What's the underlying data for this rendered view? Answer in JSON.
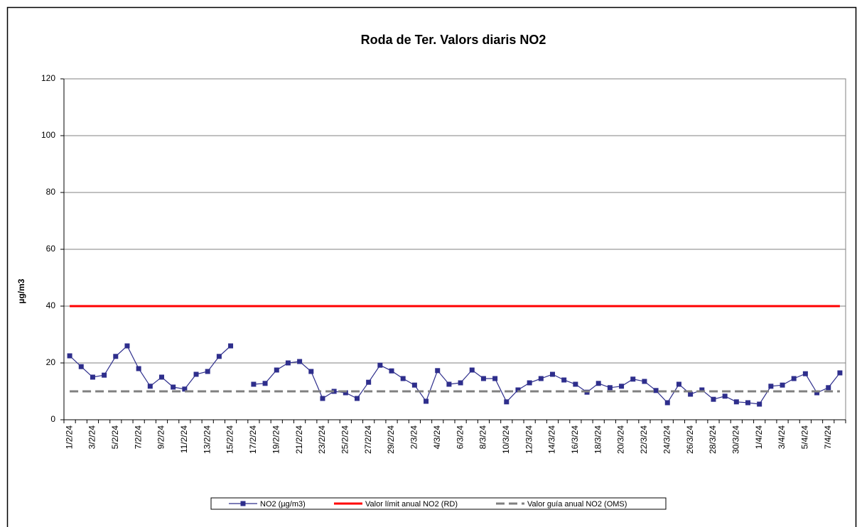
{
  "chart_data": {
    "type": "line",
    "title": "Roda de Ter. Valors diaris NO2",
    "y_label": "µg/m3",
    "categories": [
      "1/2/24",
      null,
      "3/2/24",
      null,
      "5/2/24",
      null,
      "7/2/24",
      null,
      "9/2/24",
      null,
      "11/2/24",
      null,
      "13/2/24",
      null,
      "15/2/24",
      null,
      "17/2/24",
      null,
      "19/2/24",
      null,
      "21/2/24",
      null,
      "23/2/24",
      null,
      "25/2/24",
      null,
      "27/2/24",
      null,
      "29/2/24",
      null,
      "2/3/24",
      null,
      "4/3/24",
      null,
      "6/3/24",
      null,
      "8/3/24",
      null,
      "10/3/24",
      null,
      "12/3/24",
      null,
      "14/3/24",
      null,
      "16/3/24",
      null,
      "18/3/24",
      null,
      "20/3/24",
      null,
      "22/3/24",
      null,
      "24/3/24",
      null,
      "26/3/24",
      null,
      "28/3/24",
      null,
      "30/3/24",
      null,
      "1/4/24",
      null,
      "3/4/24",
      null,
      "5/4/24",
      null,
      "7/4/24",
      null
    ],
    "series": [
      {
        "name": "NO2 (µg/m3)",
        "color": "#2e2e8c",
        "style": "marker",
        "values": [
          22.5,
          18.7,
          15,
          15.7,
          22.3,
          26,
          18,
          11.8,
          15,
          11.5,
          10.8,
          16,
          17,
          22.3,
          26,
          null,
          12.5,
          12.8,
          17.5,
          20,
          20.5,
          17,
          7.5,
          10,
          9.5,
          7.5,
          13.2,
          19.2,
          17.2,
          14.5,
          12.2,
          6.5,
          17.3,
          12.5,
          13,
          17.5,
          14.5,
          14.5,
          6.3,
          10.5,
          13,
          14.5,
          16,
          14,
          12.5,
          9.7,
          12.8,
          11.3,
          11.8,
          14.3,
          13.5,
          10.3,
          6,
          12.5,
          9,
          10.5,
          7.2,
          8.3,
          6.3,
          6,
          5.5,
          11.8,
          12.2,
          14.5,
          16.2,
          9.5,
          11.3,
          16.5
        ]
      },
      {
        "name": "Valor límit anual NO2 (RD)",
        "color": "#ff0000",
        "style": "solid",
        "values": [
          40,
          40,
          40,
          40,
          40,
          40,
          40,
          40,
          40,
          40,
          40,
          40,
          40,
          40,
          40,
          40,
          40,
          40,
          40,
          40,
          40,
          40,
          40,
          40,
          40,
          40,
          40,
          40,
          40,
          40,
          40,
          40,
          40,
          40,
          40,
          40,
          40,
          40,
          40,
          40,
          40,
          40,
          40,
          40,
          40,
          40,
          40,
          40,
          40,
          40,
          40,
          40,
          40,
          40,
          40,
          40,
          40,
          40,
          40,
          40,
          40,
          40,
          40,
          40,
          40,
          40,
          40,
          40
        ]
      },
      {
        "name": "Valor guía anual NO2 (OMS)",
        "color": "#808080",
        "style": "dashed",
        "values": [
          10,
          10,
          10,
          10,
          10,
          10,
          10,
          10,
          10,
          10,
          10,
          10,
          10,
          10,
          10,
          10,
          10,
          10,
          10,
          10,
          10,
          10,
          10,
          10,
          10,
          10,
          10,
          10,
          10,
          10,
          10,
          10,
          10,
          10,
          10,
          10,
          10,
          10,
          10,
          10,
          10,
          10,
          10,
          10,
          10,
          10,
          10,
          10,
          10,
          10,
          10,
          10,
          10,
          10,
          10,
          10,
          10,
          10,
          10,
          10,
          10,
          10,
          10,
          10,
          10,
          10,
          10,
          10
        ]
      }
    ],
    "ylim": [
      0,
      120
    ],
    "yticks": [
      0,
      20,
      40,
      60,
      80,
      100,
      120
    ],
    "grid": true,
    "legend": "bottom"
  }
}
